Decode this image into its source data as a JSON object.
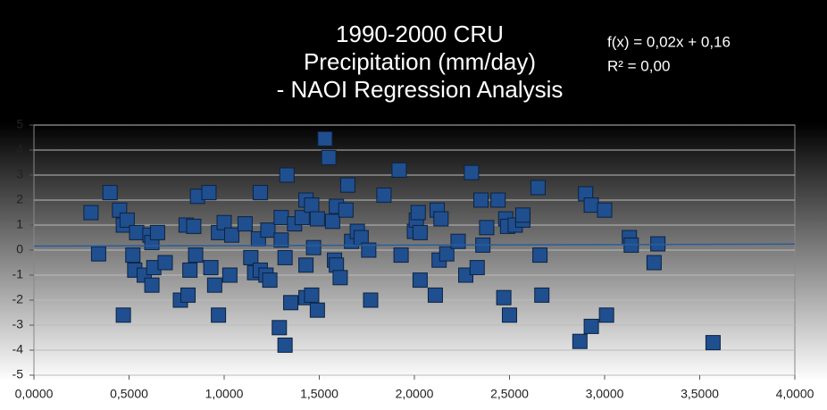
{
  "chart_data": {
    "type": "scatter",
    "title": [
      "1990-2000 CRU",
      "Precipitation (mm/day)",
      "- NAOI Regression Analysis"
    ],
    "color": "#1f4f8f",
    "grid": true,
    "trendline": {
      "label": "f(x) = 0,02x + 0,16",
      "r2_label": "R² = 0,00",
      "slope": 0.02,
      "intercept": 0.16,
      "color": "#2a5d9a"
    },
    "xlim": [
      0,
      4
    ],
    "ylim": [
      -5,
      5
    ],
    "xticks": [
      {
        "value": 0,
        "label": "0,0000"
      },
      {
        "value": 0.5,
        "label": "0,5000"
      },
      {
        "value": 1,
        "label": "1,0000"
      },
      {
        "value": 1.5,
        "label": "1,5000"
      },
      {
        "value": 2,
        "label": "2,0000"
      },
      {
        "value": 2.5,
        "label": "2,5000"
      },
      {
        "value": 3,
        "label": "3,0000"
      },
      {
        "value": 3.5,
        "label": "3,5000"
      },
      {
        "value": 4,
        "label": "4,0000"
      }
    ],
    "yticks": [
      -5,
      -4,
      -3,
      -2,
      -1,
      0,
      1,
      2,
      3,
      4,
      5
    ],
    "x": [
      0.3,
      0.34,
      0.4,
      0.45,
      0.47,
      0.49,
      0.47,
      0.52,
      0.53,
      0.54,
      0.58,
      0.61,
      0.62,
      0.62,
      0.63,
      0.65,
      0.69,
      0.77,
      0.8,
      0.81,
      0.82,
      0.84,
      0.85,
      0.86,
      0.92,
      0.93,
      0.95,
      0.97,
      0.97,
      1.0,
      1.03,
      1.04,
      1.11,
      1.14,
      1.16,
      1.18,
      1.19,
      1.19,
      1.22,
      1.23,
      1.24,
      1.29,
      1.3,
      1.3,
      1.32,
      1.32,
      1.33,
      1.35,
      1.37,
      1.41,
      1.43,
      1.43,
      1.43,
      1.46,
      1.46,
      1.47,
      1.49,
      1.49,
      1.53,
      1.55,
      1.57,
      1.58,
      1.59,
      1.59,
      1.61,
      1.64,
      1.65,
      1.67,
      1.7,
      1.72,
      1.76,
      1.77,
      1.84,
      1.92,
      1.93,
      2.0,
      2.01,
      2.02,
      2.03,
      2.03,
      2.11,
      2.12,
      2.13,
      2.14,
      2.17,
      2.23,
      2.27,
      2.3,
      2.33,
      2.35,
      2.36,
      2.38,
      2.44,
      2.47,
      2.48,
      2.49,
      2.5,
      2.53,
      2.57,
      2.57,
      2.65,
      2.66,
      2.67,
      2.87,
      2.9,
      2.93,
      2.93,
      3.0,
      3.01,
      3.13,
      3.14,
      3.26,
      3.28,
      3.57
    ],
    "values": [
      1.5,
      -0.15,
      2.3,
      1.6,
      1.0,
      1.2,
      -2.6,
      -0.2,
      -0.8,
      0.7,
      -1.0,
      0.6,
      0.3,
      -1.4,
      -0.7,
      0.7,
      -0.5,
      -2.0,
      1.0,
      -1.8,
      -0.8,
      0.95,
      -0.2,
      2.15,
      2.3,
      -0.7,
      -1.4,
      0.7,
      -2.6,
      1.1,
      -1.0,
      0.6,
      1.05,
      -0.3,
      -0.9,
      0.45,
      2.3,
      -0.8,
      -1.0,
      0.8,
      -1.2,
      -3.1,
      0.4,
      1.3,
      -3.8,
      -0.3,
      3.0,
      -2.1,
      1.05,
      1.3,
      2.0,
      -0.6,
      -1.9,
      1.8,
      -1.8,
      0.1,
      -2.4,
      1.25,
      4.45,
      3.7,
      1.15,
      -0.4,
      -0.6,
      1.75,
      -1.1,
      1.6,
      2.6,
      0.35,
      0.75,
      0.5,
      0.0,
      -2.0,
      2.2,
      3.2,
      -0.2,
      0.75,
      1.2,
      1.5,
      -1.2,
      0.7,
      -1.8,
      1.6,
      -0.4,
      1.25,
      -0.15,
      0.35,
      -1.0,
      3.1,
      -0.7,
      2.0,
      0.2,
      0.9,
      2.0,
      -1.9,
      1.25,
      0.95,
      -2.6,
      1.0,
      1.2,
      1.4,
      2.5,
      -0.2,
      -1.8,
      -3.65,
      2.25,
      1.8,
      -3.05,
      1.6,
      -2.6,
      0.5,
      0.2,
      -0.5,
      0.25,
      -3.7
    ]
  }
}
